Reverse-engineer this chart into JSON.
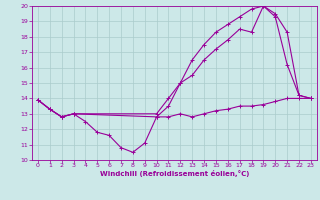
{
  "xlabel": "Windchill (Refroidissement éolien,°C)",
  "ylabel": "",
  "xlim": [
    -0.5,
    23.5
  ],
  "ylim": [
    10,
    20
  ],
  "yticks": [
    10,
    11,
    12,
    13,
    14,
    15,
    16,
    17,
    18,
    19,
    20
  ],
  "xticks": [
    0,
    1,
    2,
    3,
    4,
    5,
    6,
    7,
    8,
    9,
    10,
    11,
    12,
    13,
    14,
    15,
    16,
    17,
    18,
    19,
    20,
    21,
    22,
    23
  ],
  "bg_color": "#cce8e8",
  "line_color": "#990099",
  "grid_color": "#aacccc",
  "line1_x": [
    0,
    1,
    2,
    3,
    4,
    5,
    6,
    7,
    8,
    9,
    10,
    11,
    12,
    13,
    14,
    15,
    16,
    17,
    18,
    19,
    20,
    21,
    22,
    23
  ],
  "line1_y": [
    13.9,
    13.3,
    12.8,
    13.0,
    12.5,
    11.8,
    11.6,
    10.8,
    10.5,
    11.1,
    12.8,
    12.8,
    13.0,
    12.8,
    13.0,
    13.2,
    13.3,
    13.5,
    13.5,
    13.6,
    13.8,
    14.0,
    14.0,
    14.0
  ],
  "line2_x": [
    0,
    1,
    2,
    3,
    10,
    11,
    12,
    13,
    14,
    15,
    16,
    17,
    18,
    19,
    20,
    21,
    22,
    23
  ],
  "line2_y": [
    13.9,
    13.3,
    12.8,
    13.0,
    13.0,
    14.0,
    15.0,
    15.5,
    16.5,
    17.2,
    17.8,
    18.5,
    18.3,
    20.0,
    19.5,
    18.3,
    14.2,
    14.0
  ],
  "line3_x": [
    0,
    1,
    2,
    3,
    10,
    11,
    12,
    13,
    14,
    15,
    16,
    17,
    18,
    19,
    20,
    21,
    22,
    23
  ],
  "line3_y": [
    13.9,
    13.3,
    12.8,
    13.0,
    12.8,
    13.5,
    15.0,
    16.5,
    17.5,
    18.3,
    18.8,
    19.3,
    19.8,
    20.0,
    19.3,
    16.2,
    14.2,
    14.0
  ]
}
